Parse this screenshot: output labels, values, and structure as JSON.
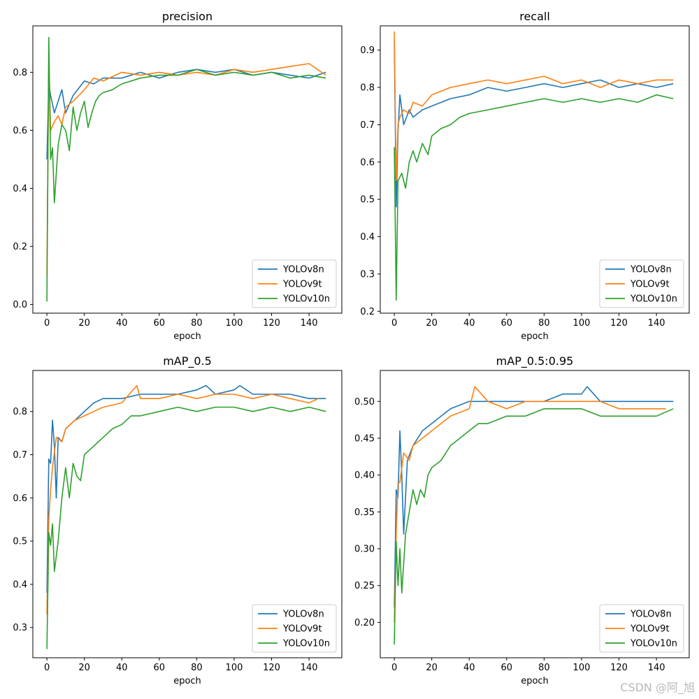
{
  "chart_data": [
    {
      "type": "line",
      "title": "precision",
      "xlabel": "epoch",
      "ylabel": "",
      "xlim": [
        -7.5,
        157.5
      ],
      "ylim": [
        -0.03,
        0.96
      ],
      "xticks": [
        0,
        20,
        40,
        60,
        80,
        100,
        120,
        140
      ],
      "xtick_labels": [
        "0",
        "20",
        "40",
        "60",
        "80",
        "100",
        "120",
        "140"
      ],
      "yticks": [
        0.0,
        0.2,
        0.4,
        0.6,
        0.8
      ],
      "ytick_labels": [
        "0.0",
        "0.2",
        "0.4",
        "0.6",
        "0.8"
      ],
      "legend_position": "lower-right",
      "series": [
        {
          "name": "YOLOv8n",
          "color": "#1f77b4",
          "x": [
            0,
            1,
            2,
            4,
            6,
            8,
            10,
            14,
            20,
            25,
            30,
            40,
            50,
            60,
            70,
            80,
            90,
            100,
            110,
            120,
            130,
            140,
            149
          ],
          "values": [
            0.5,
            0.76,
            0.72,
            0.66,
            0.7,
            0.74,
            0.66,
            0.72,
            0.77,
            0.76,
            0.78,
            0.78,
            0.8,
            0.78,
            0.8,
            0.81,
            0.8,
            0.81,
            0.79,
            0.8,
            0.79,
            0.78,
            0.8
          ]
        },
        {
          "name": "YOLOv9t",
          "color": "#ff7f0e",
          "x": [
            0,
            1,
            2,
            4,
            6,
            8,
            10,
            14,
            20,
            25,
            30,
            40,
            50,
            60,
            70,
            80,
            90,
            100,
            110,
            120,
            130,
            140,
            149
          ],
          "values": [
            0.1,
            0.85,
            0.6,
            0.63,
            0.65,
            0.62,
            0.68,
            0.7,
            0.74,
            0.78,
            0.77,
            0.8,
            0.79,
            0.8,
            0.79,
            0.8,
            0.79,
            0.81,
            0.8,
            0.81,
            0.82,
            0.83,
            0.79
          ]
        },
        {
          "name": "YOLOv10n",
          "color": "#2ca02c",
          "x": [
            0,
            1,
            2,
            3,
            4,
            6,
            8,
            10,
            12,
            14,
            16,
            18,
            20,
            22,
            24,
            26,
            28,
            30,
            35,
            40,
            50,
            60,
            70,
            80,
            90,
            100,
            110,
            120,
            130,
            140,
            149
          ],
          "values": [
            0.01,
            0.92,
            0.5,
            0.54,
            0.35,
            0.55,
            0.62,
            0.6,
            0.53,
            0.68,
            0.6,
            0.66,
            0.7,
            0.61,
            0.66,
            0.7,
            0.72,
            0.73,
            0.74,
            0.76,
            0.78,
            0.79,
            0.79,
            0.81,
            0.79,
            0.8,
            0.79,
            0.8,
            0.78,
            0.79,
            0.78
          ]
        }
      ]
    },
    {
      "type": "line",
      "title": "recall",
      "xlabel": "epoch",
      "ylabel": "",
      "xlim": [
        -7.5,
        157.5
      ],
      "ylim": [
        0.195,
        0.965
      ],
      "xticks": [
        0,
        20,
        40,
        60,
        80,
        100,
        120,
        140
      ],
      "xtick_labels": [
        "0",
        "20",
        "40",
        "60",
        "80",
        "100",
        "120",
        "140"
      ],
      "yticks": [
        0.2,
        0.3,
        0.4,
        0.5,
        0.6,
        0.7,
        0.8,
        0.9
      ],
      "ytick_labels": [
        "0.2",
        "0.3",
        "0.4",
        "0.5",
        "0.6",
        "0.7",
        "0.8",
        "0.9"
      ],
      "legend_position": "lower-right",
      "series": [
        {
          "name": "YOLOv8n",
          "color": "#1f77b4",
          "x": [
            0,
            1,
            2,
            3,
            5,
            8,
            10,
            15,
            20,
            25,
            30,
            40,
            50,
            60,
            70,
            80,
            90,
            100,
            110,
            120,
            130,
            140,
            149
          ],
          "values": [
            0.93,
            0.48,
            0.68,
            0.78,
            0.7,
            0.74,
            0.72,
            0.74,
            0.75,
            0.76,
            0.77,
            0.78,
            0.8,
            0.79,
            0.8,
            0.81,
            0.8,
            0.81,
            0.82,
            0.8,
            0.81,
            0.8,
            0.81
          ]
        },
        {
          "name": "YOLOv9t",
          "color": "#ff7f0e",
          "x": [
            0,
            1,
            2,
            3,
            5,
            8,
            10,
            15,
            20,
            25,
            30,
            40,
            50,
            60,
            70,
            80,
            90,
            100,
            110,
            120,
            130,
            140,
            149
          ],
          "values": [
            0.95,
            0.55,
            0.7,
            0.72,
            0.74,
            0.73,
            0.76,
            0.75,
            0.78,
            0.79,
            0.8,
            0.81,
            0.82,
            0.81,
            0.82,
            0.83,
            0.81,
            0.82,
            0.8,
            0.82,
            0.81,
            0.82,
            0.82
          ]
        },
        {
          "name": "YOLOv10n",
          "color": "#2ca02c",
          "x": [
            0,
            1,
            2,
            3,
            4,
            6,
            8,
            10,
            12,
            15,
            18,
            20,
            25,
            30,
            35,
            40,
            50,
            60,
            70,
            80,
            90,
            100,
            110,
            120,
            130,
            140,
            149
          ],
          "values": [
            0.64,
            0.23,
            0.55,
            0.56,
            0.57,
            0.53,
            0.6,
            0.63,
            0.6,
            0.65,
            0.62,
            0.67,
            0.69,
            0.7,
            0.72,
            0.73,
            0.74,
            0.75,
            0.76,
            0.77,
            0.76,
            0.77,
            0.76,
            0.77,
            0.76,
            0.78,
            0.77
          ]
        }
      ]
    },
    {
      "type": "line",
      "title": "mAP_0.5",
      "xlabel": "epoch",
      "ylabel": "",
      "xlim": [
        -7.5,
        157.5
      ],
      "ylim": [
        0.23,
        0.895
      ],
      "xticks": [
        0,
        20,
        40,
        60,
        80,
        100,
        120,
        140
      ],
      "xtick_labels": [
        "0",
        "20",
        "40",
        "60",
        "80",
        "100",
        "120",
        "140"
      ],
      "yticks": [
        0.3,
        0.4,
        0.5,
        0.6,
        0.7,
        0.8
      ],
      "ytick_labels": [
        "0.3",
        "0.4",
        "0.5",
        "0.6",
        "0.7",
        "0.8"
      ],
      "legend_position": "lower-right",
      "series": [
        {
          "name": "YOLOv8n",
          "color": "#1f77b4",
          "x": [
            0,
            1,
            2,
            3,
            4,
            5,
            6,
            8,
            10,
            15,
            20,
            25,
            30,
            40,
            50,
            60,
            70,
            80,
            85,
            90,
            100,
            103,
            110,
            120,
            130,
            140,
            149
          ],
          "values": [
            0.38,
            0.69,
            0.68,
            0.78,
            0.72,
            0.6,
            0.74,
            0.73,
            0.76,
            0.78,
            0.8,
            0.82,
            0.83,
            0.83,
            0.84,
            0.84,
            0.84,
            0.85,
            0.86,
            0.84,
            0.85,
            0.86,
            0.84,
            0.84,
            0.84,
            0.83,
            0.83
          ]
        },
        {
          "name": "YOLOv9t",
          "color": "#ff7f0e",
          "x": [
            0,
            1,
            2,
            3,
            5,
            8,
            10,
            15,
            20,
            25,
            30,
            40,
            48,
            50,
            60,
            70,
            80,
            90,
            100,
            110,
            120,
            130,
            140,
            145
          ],
          "values": [
            0.33,
            0.55,
            0.62,
            0.67,
            0.74,
            0.73,
            0.76,
            0.78,
            0.79,
            0.8,
            0.81,
            0.82,
            0.86,
            0.83,
            0.83,
            0.84,
            0.83,
            0.84,
            0.84,
            0.83,
            0.84,
            0.83,
            0.82,
            0.83
          ]
        },
        {
          "name": "YOLOv10n",
          "color": "#2ca02c",
          "x": [
            0,
            1,
            2,
            3,
            4,
            6,
            8,
            10,
            12,
            14,
            16,
            18,
            20,
            25,
            30,
            35,
            40,
            45,
            50,
            60,
            70,
            80,
            90,
            100,
            110,
            120,
            130,
            140,
            149
          ],
          "values": [
            0.25,
            0.52,
            0.49,
            0.54,
            0.43,
            0.5,
            0.6,
            0.67,
            0.6,
            0.68,
            0.65,
            0.64,
            0.7,
            0.72,
            0.74,
            0.76,
            0.77,
            0.79,
            0.79,
            0.8,
            0.81,
            0.8,
            0.81,
            0.81,
            0.8,
            0.81,
            0.8,
            0.81,
            0.8
          ]
        }
      ]
    },
    {
      "type": "line",
      "title": "mAP_0.5:0.95",
      "xlabel": "epoch",
      "ylabel": "",
      "xlim": [
        -7.5,
        157.5
      ],
      "ylim": [
        0.152,
        0.542
      ],
      "xticks": [
        0,
        20,
        40,
        60,
        80,
        100,
        120,
        140
      ],
      "xtick_labels": [
        "0",
        "20",
        "40",
        "60",
        "80",
        "100",
        "120",
        "140"
      ],
      "yticks": [
        0.2,
        0.25,
        0.3,
        0.35,
        0.4,
        0.45,
        0.5
      ],
      "ytick_labels": [
        "0.20",
        "0.25",
        "0.30",
        "0.35",
        "0.40",
        "0.45",
        "0.50"
      ],
      "legend_position": "lower-right",
      "series": [
        {
          "name": "YOLOv8n",
          "color": "#1f77b4",
          "x": [
            0,
            1,
            2,
            3,
            4,
            5,
            7,
            10,
            15,
            20,
            25,
            30,
            40,
            50,
            60,
            70,
            80,
            90,
            100,
            103,
            110,
            120,
            130,
            140,
            149
          ],
          "values": [
            0.22,
            0.38,
            0.37,
            0.46,
            0.4,
            0.32,
            0.42,
            0.44,
            0.46,
            0.47,
            0.48,
            0.49,
            0.5,
            0.5,
            0.5,
            0.5,
            0.5,
            0.51,
            0.51,
            0.52,
            0.5,
            0.5,
            0.5,
            0.5,
            0.5
          ]
        },
        {
          "name": "YOLOv9t",
          "color": "#ff7f0e",
          "x": [
            0,
            1,
            2,
            3,
            5,
            8,
            10,
            15,
            20,
            25,
            30,
            40,
            43,
            50,
            60,
            70,
            80,
            90,
            100,
            110,
            120,
            130,
            140,
            145
          ],
          "values": [
            0.2,
            0.32,
            0.39,
            0.39,
            0.43,
            0.42,
            0.44,
            0.45,
            0.46,
            0.47,
            0.48,
            0.49,
            0.52,
            0.5,
            0.49,
            0.5,
            0.5,
            0.5,
            0.5,
            0.5,
            0.49,
            0.49,
            0.49,
            0.49
          ]
        },
        {
          "name": "YOLOv10n",
          "color": "#2ca02c",
          "x": [
            0,
            1,
            2,
            3,
            4,
            6,
            8,
            10,
            12,
            14,
            16,
            18,
            20,
            25,
            30,
            35,
            40,
            45,
            50,
            60,
            70,
            80,
            90,
            100,
            110,
            120,
            130,
            140,
            149
          ],
          "values": [
            0.17,
            0.31,
            0.25,
            0.3,
            0.24,
            0.32,
            0.35,
            0.38,
            0.36,
            0.38,
            0.37,
            0.4,
            0.41,
            0.42,
            0.44,
            0.45,
            0.46,
            0.47,
            0.47,
            0.48,
            0.48,
            0.49,
            0.49,
            0.49,
            0.48,
            0.48,
            0.48,
            0.48,
            0.49
          ]
        }
      ]
    }
  ],
  "watermark": "CSDN @阿_旭"
}
